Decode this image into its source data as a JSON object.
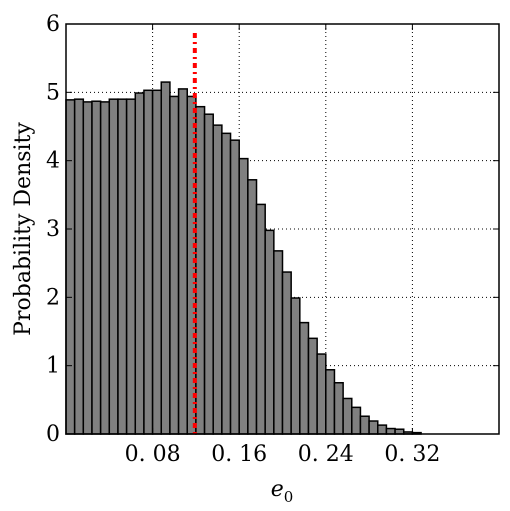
{
  "chart_data": {
    "type": "bar",
    "title": "",
    "xlabel_main": "e",
    "xlabel_subscript": "0",
    "ylabel": "Probability Density",
    "xlim": [
      0.0,
      0.4
    ],
    "ylim": [
      0,
      6
    ],
    "grid": true,
    "grid_style": "dotted",
    "xticks": [
      0.08,
      0.16,
      0.24,
      0.32
    ],
    "xtick_labels": [
      "0. 08",
      "0. 16",
      "0. 24",
      "0. 32"
    ],
    "yticks": [
      0,
      1,
      2,
      3,
      4,
      5,
      6
    ],
    "ytick_labels": [
      "0",
      "1",
      "2",
      "3",
      "4",
      "5",
      "6"
    ],
    "bin_width": 0.008,
    "bin_start": 0.0,
    "values": [
      4.89,
      4.9,
      4.86,
      4.87,
      4.86,
      4.9,
      4.9,
      4.9,
      4.99,
      5.03,
      5.03,
      5.15,
      4.94,
      5.05,
      4.94,
      4.79,
      4.68,
      4.52,
      4.4,
      4.3,
      4.03,
      3.72,
      3.36,
      2.98,
      2.68,
      2.37,
      1.99,
      1.63,
      1.4,
      1.17,
      0.94,
      0.75,
      0.52,
      0.39,
      0.26,
      0.19,
      0.13,
      0.08,
      0.07,
      0.03,
      0.02
    ],
    "bar_color": "#808080",
    "bar_edge_color": "#000000",
    "reference_line": {
      "x": 0.119,
      "color": "#ff0000",
      "style": "dash-dot"
    }
  }
}
